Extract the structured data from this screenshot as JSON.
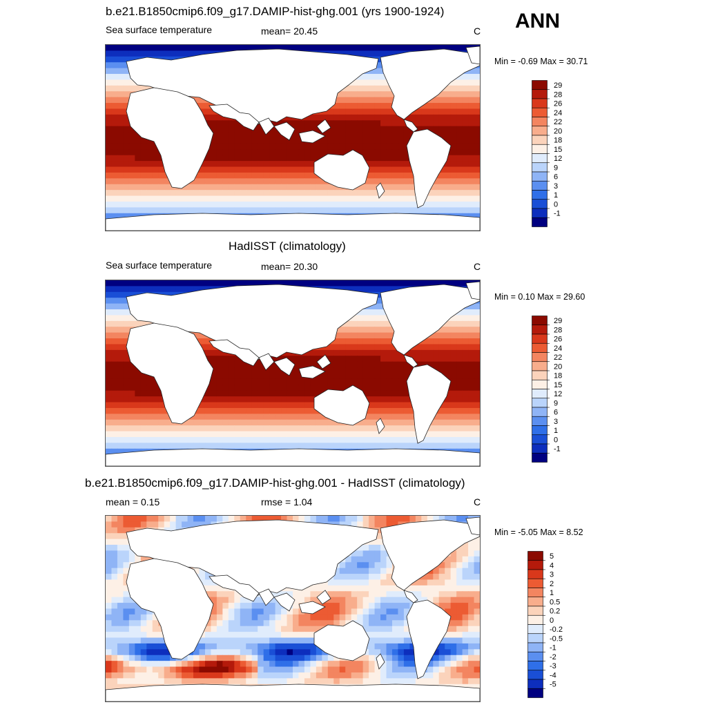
{
  "season": "ANN",
  "panels": [
    {
      "title": "b.e21.B1850cmip6.f09_g17.DAMIP-hist-ghg.001 (yrs 1900-1924)",
      "left_text": "Sea surface temperature",
      "center_text": "mean=  20.45",
      "units": "C",
      "minmax": "Min =  -0.69 Max =  30.71",
      "kind": "sst",
      "colorbar_labels": [
        "29",
        "28",
        "26",
        "24",
        "22",
        "20",
        "18",
        "15",
        "12",
        "9",
        "6",
        "3",
        "1",
        "0",
        "-1"
      ],
      "colors": [
        "#000080",
        "#0d2ebd",
        "#1a4fd6",
        "#2f6fe8",
        "#5b8ff0",
        "#8fb4f6",
        "#bad4fb",
        "#e0ecfc",
        "#fdf0e6",
        "#fbd3bb",
        "#f8ad8c",
        "#f38560",
        "#ec5b33",
        "#d9381b",
        "#b41a0b",
        "#8b0a00"
      ]
    },
    {
      "title": "HadISST (climatology)",
      "left_text": "Sea surface temperature",
      "center_text": "mean=  20.30",
      "units": "C",
      "minmax": "Min =   0.10 Max =  29.60",
      "kind": "sst",
      "colorbar_labels": [
        "29",
        "28",
        "26",
        "24",
        "22",
        "20",
        "18",
        "15",
        "12",
        "9",
        "6",
        "3",
        "1",
        "0",
        "-1"
      ],
      "colors": [
        "#000080",
        "#0d2ebd",
        "#1a4fd6",
        "#2f6fe8",
        "#5b8ff0",
        "#8fb4f6",
        "#bad4fb",
        "#e0ecfc",
        "#fdf0e6",
        "#fbd3bb",
        "#f8ad8c",
        "#f38560",
        "#ec5b33",
        "#d9381b",
        "#b41a0b",
        "#8b0a00"
      ]
    },
    {
      "title": "b.e21.B1850cmip6.f09_g17.DAMIP-hist-ghg.001 - HadISST (climatology)",
      "left_text": "mean =   0.15",
      "center_text": "rmse =   1.04",
      "units": "C",
      "minmax": "Min =  -5.05 Max =   8.52",
      "kind": "diff",
      "colorbar_labels": [
        "5",
        "4",
        "3",
        "2",
        "1",
        "0.5",
        "0.2",
        "0",
        "-0.2",
        "-0.5",
        "-1",
        "-2",
        "-3",
        "-4",
        "-5"
      ],
      "colors": [
        "#000080",
        "#0d2ebd",
        "#1a4fd6",
        "#2f6fe8",
        "#5b8ff0",
        "#8fb4f6",
        "#bad4fb",
        "#e0ecfc",
        "#fdf0e6",
        "#fbd3bb",
        "#f8ad8c",
        "#f38560",
        "#ec5b33",
        "#d9381b",
        "#b41a0b",
        "#8b0a00"
      ]
    }
  ]
}
